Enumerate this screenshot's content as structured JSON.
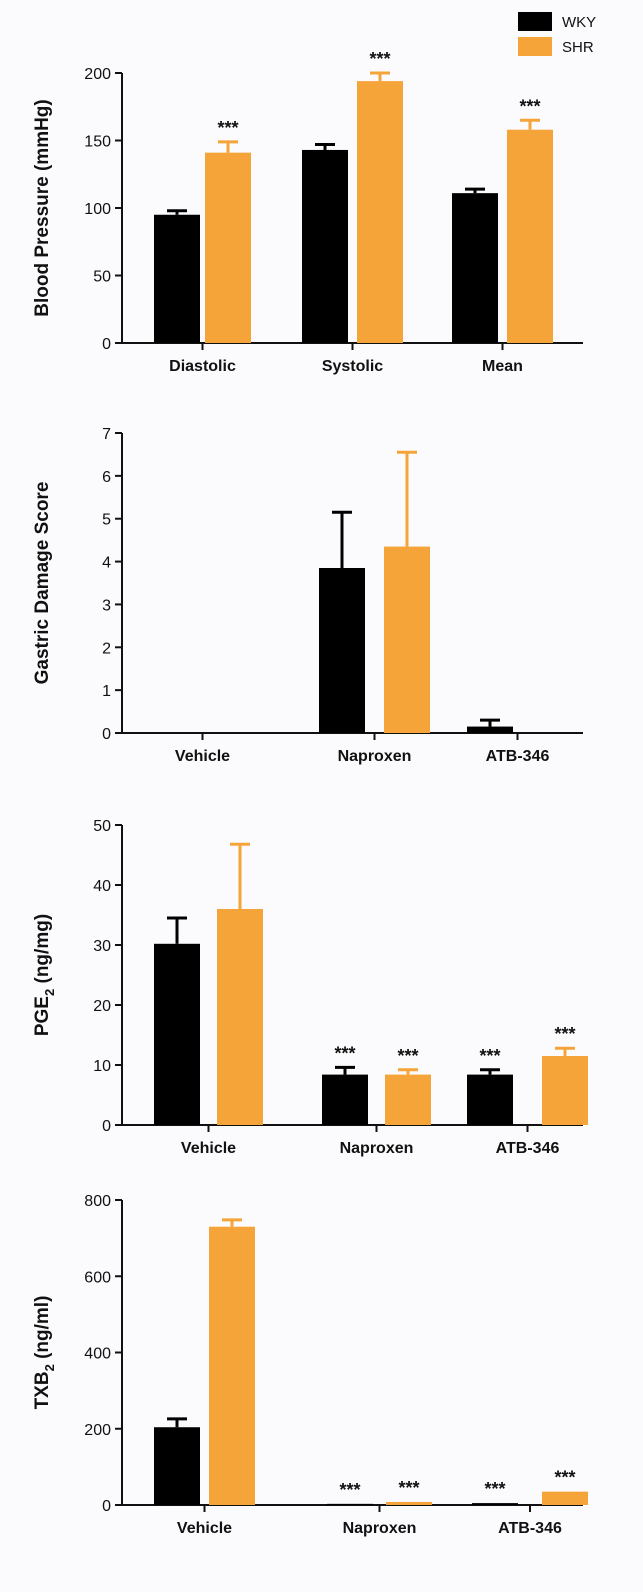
{
  "legend": [
    {
      "label": "WKY",
      "color": "#000000"
    },
    {
      "label": "SHR",
      "color": "#f5a43a"
    }
  ],
  "chart_data": [
    {
      "type": "bar",
      "ylabel": "Blood Pressure (mmHg)",
      "ylim": [
        0,
        200
      ],
      "yticks": [
        "0",
        "50",
        "100",
        "150",
        "200"
      ],
      "categories": [
        "Diastolic",
        "Systolic",
        "Mean"
      ],
      "series": [
        {
          "name": "WKY",
          "values": [
            95,
            143,
            111
          ],
          "errors": [
            3,
            4,
            3
          ],
          "annotations": [
            "",
            "",
            ""
          ]
        },
        {
          "name": "SHR",
          "values": [
            141,
            194,
            158
          ],
          "errors": [
            8,
            6,
            7
          ],
          "annotations": [
            "***",
            "***",
            "***"
          ]
        }
      ]
    },
    {
      "type": "bar",
      "ylabel": "Gastric Damage Score",
      "ylim": [
        0,
        7
      ],
      "yticks": [
        "0",
        "1",
        "2",
        "3",
        "4",
        "5",
        "6",
        "7"
      ],
      "categories": [
        "Vehicle",
        "Naproxen",
        "ATB-346"
      ],
      "series": [
        {
          "name": "WKY",
          "values": [
            0,
            3.85,
            0.15
          ],
          "errors": [
            0,
            1.3,
            0.15
          ],
          "annotations": [
            "",
            "",
            ""
          ]
        },
        {
          "name": "SHR",
          "values": [
            0,
            4.35,
            0
          ],
          "errors": [
            0,
            2.2,
            0
          ],
          "annotations": [
            "",
            "",
            ""
          ]
        }
      ]
    },
    {
      "type": "bar",
      "ylabel": "PGE2 (ng/mg)",
      "ylim": [
        0,
        50
      ],
      "yticks": [
        "0",
        "10",
        "20",
        "30",
        "40",
        "50"
      ],
      "categories": [
        "Vehicle",
        "Naproxen",
        "ATB-346"
      ],
      "series": [
        {
          "name": "WKY",
          "values": [
            30.2,
            8.4,
            8.4
          ],
          "errors": [
            4.3,
            1.2,
            0.8
          ],
          "annotations": [
            "",
            "***",
            "***"
          ]
        },
        {
          "name": "SHR",
          "values": [
            36,
            8.4,
            11.5
          ],
          "errors": [
            10.8,
            0.8,
            1.3
          ],
          "annotations": [
            "",
            "***",
            "***"
          ]
        }
      ]
    },
    {
      "type": "bar",
      "ylabel": "TXB2 (ng/ml)",
      "ylim": [
        0,
        800
      ],
      "yticks": [
        "0",
        "200",
        "400",
        "600",
        "800"
      ],
      "categories": [
        "Vehicle",
        "Naproxen",
        "ATB-346"
      ],
      "series": [
        {
          "name": "WKY",
          "values": [
            204,
            3,
            5
          ],
          "errors": [
            22,
            0,
            0
          ],
          "annotations": [
            "",
            "***",
            "***"
          ]
        },
        {
          "name": "SHR",
          "values": [
            730,
            8,
            35
          ],
          "errors": [
            18,
            0,
            0
          ],
          "annotations": [
            "",
            "***",
            "***"
          ]
        }
      ]
    }
  ]
}
